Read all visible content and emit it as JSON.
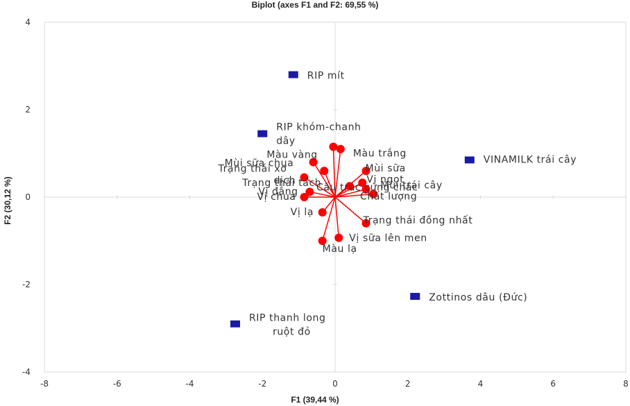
{
  "chart_data": {
    "type": "scatter",
    "title": "Biplot (axes F1 and F2: 69,55 %)",
    "xlabel": "F1 (39,44 %)",
    "ylabel": "F2 (30,12 %)",
    "xlim": [
      -8,
      8
    ],
    "ylim": [
      -4,
      4
    ],
    "xticks": [
      -8,
      -6,
      -4,
      -2,
      0,
      2,
      4,
      6,
      8
    ],
    "yticks": [
      -4,
      -2,
      0,
      2,
      4
    ],
    "grid": false,
    "colors": {
      "observations": "#1a1aa6",
      "variables": "#ff0000",
      "axes": "#d9d9d9"
    },
    "observations": [
      {
        "label": "RIP mít",
        "x": -1.15,
        "y": 2.8
      },
      {
        "label": "RIP khóm-chanh dây",
        "x": -2.0,
        "y": 1.45
      },
      {
        "label": "VINAMILK trái cây",
        "x": 3.7,
        "y": 0.85
      },
      {
        "label": "Zottinos dâu (Đức)",
        "x": 2.2,
        "y": -2.27
      },
      {
        "label": "RIP thanh long ruột đỏ",
        "x": -2.75,
        "y": -2.9
      }
    ],
    "variables": [
      {
        "label": "Màu vàng",
        "x": -0.05,
        "y": 1.15
      },
      {
        "label": "Màu trắng",
        "x": 0.15,
        "y": 1.1
      },
      {
        "label": "Mùi sữa chua",
        "x": -0.6,
        "y": 0.8
      },
      {
        "label": "Trạng thái tách",
        "x": -0.3,
        "y": 0.6
      },
      {
        "label": "Trạng thái xơ dịch",
        "x": -0.85,
        "y": 0.45
      },
      {
        "label": "Vị đắng",
        "x": -0.7,
        "y": 0.12
      },
      {
        "label": "Vị chua",
        "x": -0.85,
        "y": 0.0
      },
      {
        "label": "Mùi sữa",
        "x": 0.85,
        "y": 0.6
      },
      {
        "label": "Vị ngọt",
        "x": 0.75,
        "y": 0.33
      },
      {
        "label": "Cấu trúc cứng chắc",
        "x": 0.4,
        "y": 0.25
      },
      {
        "label": "Mùi trái cây",
        "x": 0.85,
        "y": 0.18
      },
      {
        "label": "Chất lượng",
        "x": 1.05,
        "y": 0.07
      },
      {
        "label": "Vị lạ",
        "x": -0.35,
        "y": -0.35
      },
      {
        "label": "Trạng thái đồng nhất",
        "x": 0.85,
        "y": -0.6
      },
      {
        "label": "Vị sữa lên men",
        "x": 0.1,
        "y": -0.93
      },
      {
        "label": "Màu lạ",
        "x": -0.35,
        "y": -1.0
      }
    ]
  }
}
